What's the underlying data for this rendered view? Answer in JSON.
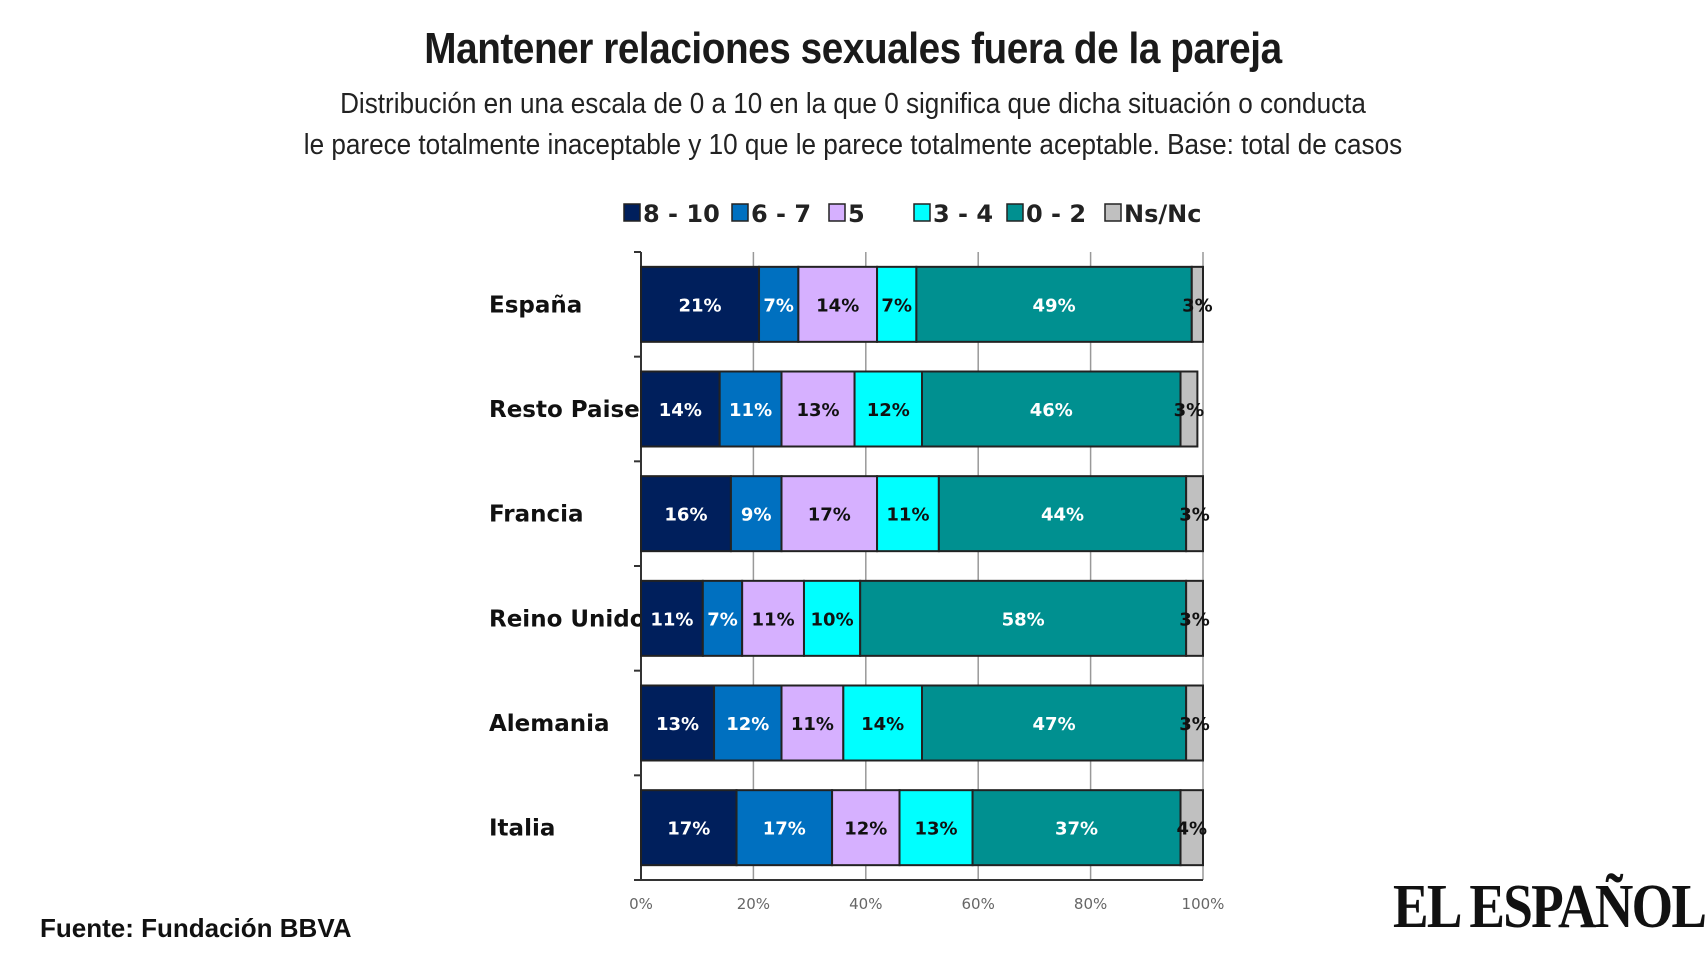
{
  "chart_data": {
    "type": "bar",
    "orientation": "horizontal",
    "stacked": true,
    "title": "Mantener relaciones sexuales fuera de la pareja",
    "subtitle": [
      "Distribución en una escala de 0 a 10 en la que 0 significa que dicha situación o conducta",
      "le parece totalmente inaceptable y 10 que le parece totalmente aceptable. Base: total de casos"
    ],
    "categories": [
      "España",
      "Resto Paises",
      "Francia",
      "Reino Unido",
      "Alemania",
      "Italia"
    ],
    "series": [
      {
        "name": "8 - 10",
        "color": "#001f5c",
        "label_color": "#ffffff",
        "values": [
          21,
          14,
          16,
          11,
          13,
          17
        ]
      },
      {
        "name": "6 - 7",
        "color": "#0070c0",
        "label_color": "#ffffff",
        "values": [
          7,
          11,
          9,
          7,
          12,
          17
        ]
      },
      {
        "name": "5",
        "color": "#d6b0ff",
        "label_color": "#111111",
        "values": [
          14,
          13,
          17,
          11,
          11,
          12
        ]
      },
      {
        "name": "3 - 4",
        "color": "#00ffff",
        "label_color": "#111111",
        "values": [
          7,
          12,
          11,
          10,
          14,
          13
        ]
      },
      {
        "name": "0 - 2",
        "color": "#009090",
        "label_color": "#ffffff",
        "values": [
          49,
          46,
          44,
          58,
          47,
          37
        ]
      },
      {
        "name": "Ns/Nc",
        "color": "#c0c0c0",
        "label_color": "#111111",
        "values": [
          3,
          3,
          3,
          3,
          3,
          4
        ]
      }
    ],
    "xlim": [
      0,
      100
    ],
    "xticks": [
      "0%",
      "20%",
      "40%",
      "60%",
      "80%",
      "100%"
    ],
    "grid": true,
    "legend": "top"
  },
  "source": "Fuente: Fundación BBVA",
  "logo": "EL ESPAÑOL"
}
